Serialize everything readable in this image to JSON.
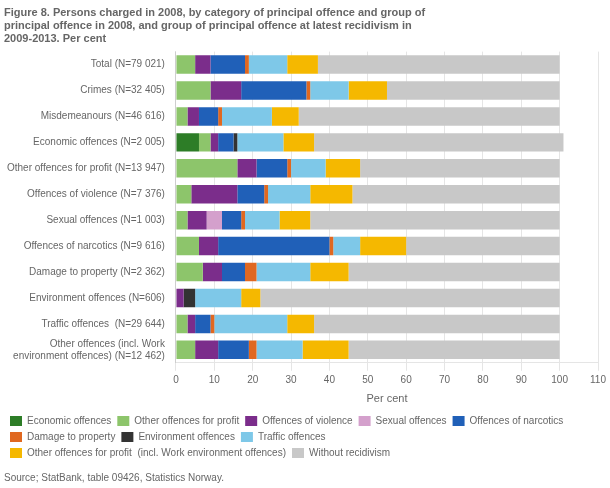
{
  "chart_data": {
    "type": "bar",
    "orientation": "horizontal",
    "stacked": true,
    "title": "Figure 8. Persons charged in 2008, by category of principal offence and group of\nprincipal offence in 2008, and group of principal offence at latest recidivism in\n2009-2013. Per cent",
    "annotations": [
      "Source; StatBank, table 09426, Statistics Norway."
    ],
    "xlabel": "Per cent",
    "categories": [
      "Total (N=79 021)",
      "Crimes (N=32 405)",
      "Misdemeanours (N=46 616)",
      "Economic offences (N=2 005)",
      "Other offences for profit (N=13 947)",
      "Offences of violence (N=7 376)",
      "Sexual offences (N=1 003)",
      "Offences of narcotics (N=9 616)",
      "Damage to property (N=2 362)",
      "Environment offences (N=606)",
      "Traffic offences  (N=29 644)",
      "Other offences (incl. Work\nenvironment offences) (N=12 462)"
    ],
    "series": [
      {
        "name": "Economic offences",
        "color": "#2d7d27",
        "values": [
          0,
          0,
          0,
          6,
          0,
          0,
          0,
          0,
          0,
          0,
          0,
          0
        ]
      },
      {
        "name": "Other offences for profit",
        "color": "#8dc56b",
        "values": [
          5,
          9,
          3,
          3,
          16,
          4,
          3,
          6,
          7,
          0,
          3,
          5
        ]
      },
      {
        "name": "Offences of violence",
        "color": "#7b2d8b",
        "values": [
          4,
          8,
          3,
          2,
          5,
          12,
          5,
          5,
          5,
          2,
          2,
          6
        ]
      },
      {
        "name": "Sexual offences",
        "color": "#d4a0cc",
        "values": [
          0,
          0,
          0,
          0,
          0,
          0,
          4,
          0,
          0,
          0,
          0,
          0
        ]
      },
      {
        "name": "Offences of narcotics",
        "color": "#2060b8",
        "values": [
          9,
          17,
          5,
          4,
          8,
          7,
          5,
          29,
          6,
          0,
          4,
          8
        ]
      },
      {
        "name": "Damage to property",
        "color": "#e06820",
        "values": [
          1,
          1,
          1,
          0,
          1,
          1,
          1,
          1,
          3,
          0,
          1,
          2
        ]
      },
      {
        "name": "Environment offences",
        "color": "#333333",
        "values": [
          0,
          0,
          0,
          1,
          0,
          0,
          0,
          0,
          0,
          3,
          0,
          0
        ]
      },
      {
        "name": "Traffic offences",
        "color": "#7ec8e8",
        "values": [
          10,
          10,
          13,
          12,
          9,
          11,
          9,
          7,
          14,
          12,
          19,
          12
        ]
      },
      {
        "name": "Other offences for profit  (incl. Work environment offences)",
        "color": "#f5b800",
        "values": [
          8,
          10,
          7,
          8,
          9,
          11,
          8,
          12,
          10,
          5,
          7,
          12
        ]
      },
      {
        "name": "Without recidivism",
        "color": "#c8c8c8",
        "values": [
          63,
          45,
          68,
          65,
          52,
          54,
          65,
          40,
          55,
          78,
          64,
          55
        ]
      }
    ],
    "xlim": [
      0,
      110
    ],
    "xticks": [
      0,
      10,
      20,
      30,
      40,
      50,
      60,
      70,
      80,
      90,
      100,
      110
    ],
    "grid": true,
    "legend": "bottom"
  }
}
